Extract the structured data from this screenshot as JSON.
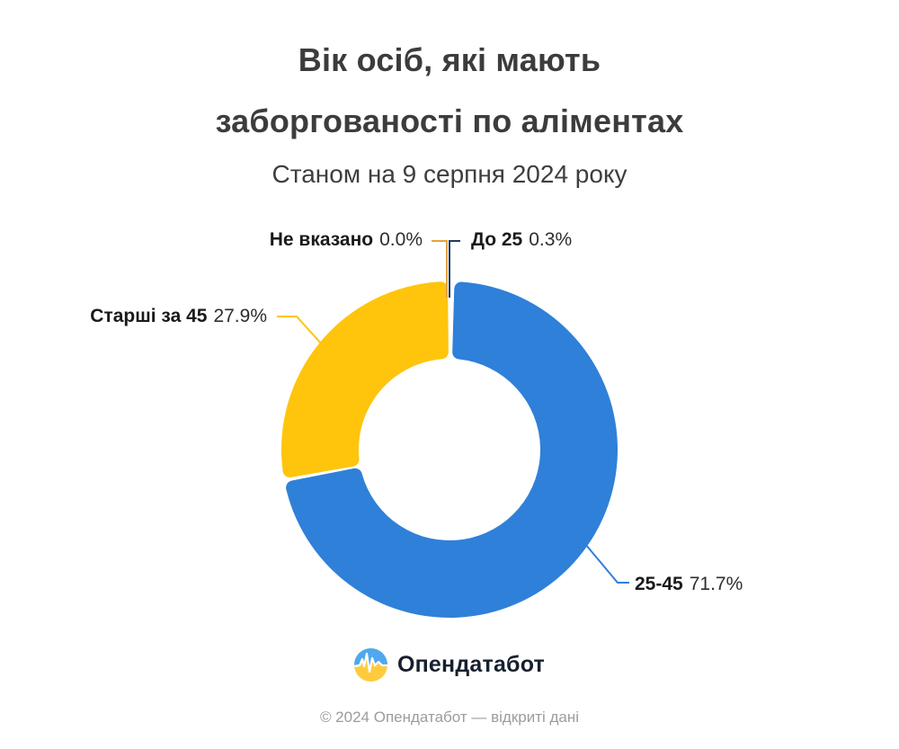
{
  "header": {
    "title_line1": "Вік осіб, які мають",
    "title_line2": "заборгованості по аліментах",
    "subtitle": "Станом на 9 серпня 2024 року"
  },
  "chart_data": {
    "type": "pie",
    "variant": "donut",
    "title": "Вік осіб, які мають заборгованості по аліментах",
    "subtitle": "Станом на 9 серпня 2024 року",
    "unit": "percent",
    "labels_position": "outside-callout",
    "start_angle": "12 o'clock, clockwise",
    "slices": [
      {
        "label": "До 25",
        "value": 0.3,
        "display": "0.3%",
        "color": "#223A5E"
      },
      {
        "label": "25-45",
        "value": 71.7,
        "display": "71.7%",
        "color": "#2F80D9"
      },
      {
        "label": "Старші за 45",
        "value": 27.9,
        "display": "27.9%",
        "color": "#FFC40C"
      },
      {
        "label": "Не вказано",
        "value": 0.0,
        "display": "0.0%",
        "color": "#E2A43F"
      }
    ]
  },
  "logo": {
    "text": "Опендатабот"
  },
  "footer": {
    "copyright": "© 2024 Опендатабот — відкриті дані"
  },
  "colors": {
    "blue": "#2F80D9",
    "yellow": "#FFC40C",
    "navy": "#223A5E",
    "orange": "#E2A43F",
    "title_text": "#3C3C3C",
    "label_text": "#1A1A1A",
    "footer_text": "#9C9C9C",
    "background": "#FFFFFF"
  }
}
